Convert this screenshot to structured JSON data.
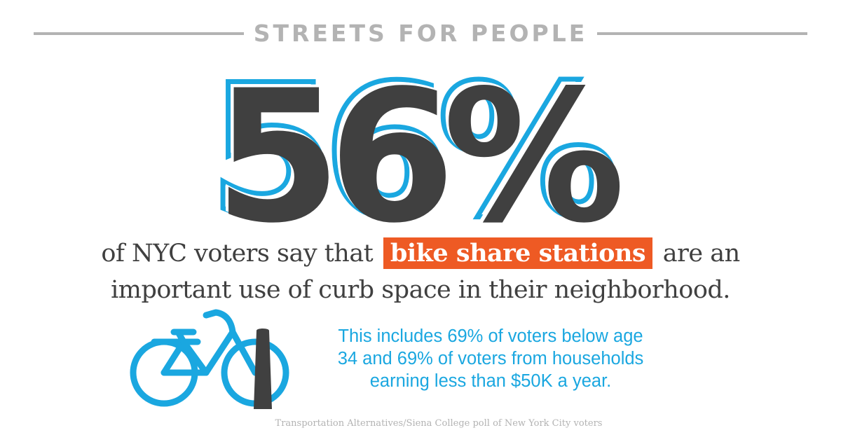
{
  "header": {
    "title": "STREETS FOR PEOPLE"
  },
  "stat": {
    "value": "56%"
  },
  "statement": {
    "line1_before": "of NYC voters say that",
    "highlight": "bike share stations",
    "line1_after": "are an",
    "line2": "important use of curb space in their neighborhood."
  },
  "detail": {
    "line1": "This includes 69% of voters below age",
    "line2": "34 and 69% of voters from households",
    "line3": "earning less than $50K a year."
  },
  "source": "Transportation Alternatives/Siena College poll of New York City voters",
  "icons": {
    "bike": "bicycle-icon",
    "post": "bollard-icon"
  },
  "colors": {
    "stat_fill": "#404040",
    "stat_outline": "#1aa7e0",
    "highlight": "#ee5a24",
    "accent": "#1aa7e0",
    "rule": "#b3b3b3"
  }
}
